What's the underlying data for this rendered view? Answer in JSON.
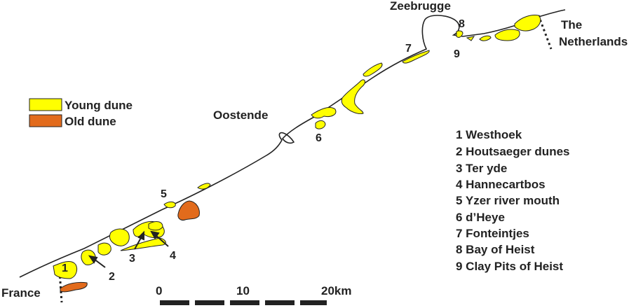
{
  "places": {
    "zeebrugge": "Zeebrugge",
    "oostende": "Oostende",
    "netherlands_line1": "The",
    "netherlands_line2": "Netherlands",
    "france": "France"
  },
  "legend": {
    "items": [
      {
        "label": "Young dune",
        "color": "#ffff00"
      },
      {
        "label": "Old dune",
        "color": "#e26b1c"
      }
    ]
  },
  "site_list": [
    "1 Westhoek",
    "2 Houtsaeger dunes",
    "3 Ter yde",
    "4 Hannecartbos",
    "5 Yzer river mouth",
    "6 d’Heye",
    "7 Fonteintjes",
    "8 Bay of Heist",
    "9 Clay Pits of Heist"
  ],
  "site_numbers": [
    "1",
    "2",
    "3",
    "4",
    "5",
    "6",
    "7",
    "8",
    "9"
  ],
  "scale_bar": {
    "labels": [
      "0",
      "10",
      "20km"
    ]
  },
  "colors": {
    "young_dune": "#ffff00",
    "old_dune": "#e26b1c",
    "outline": "#222222"
  }
}
